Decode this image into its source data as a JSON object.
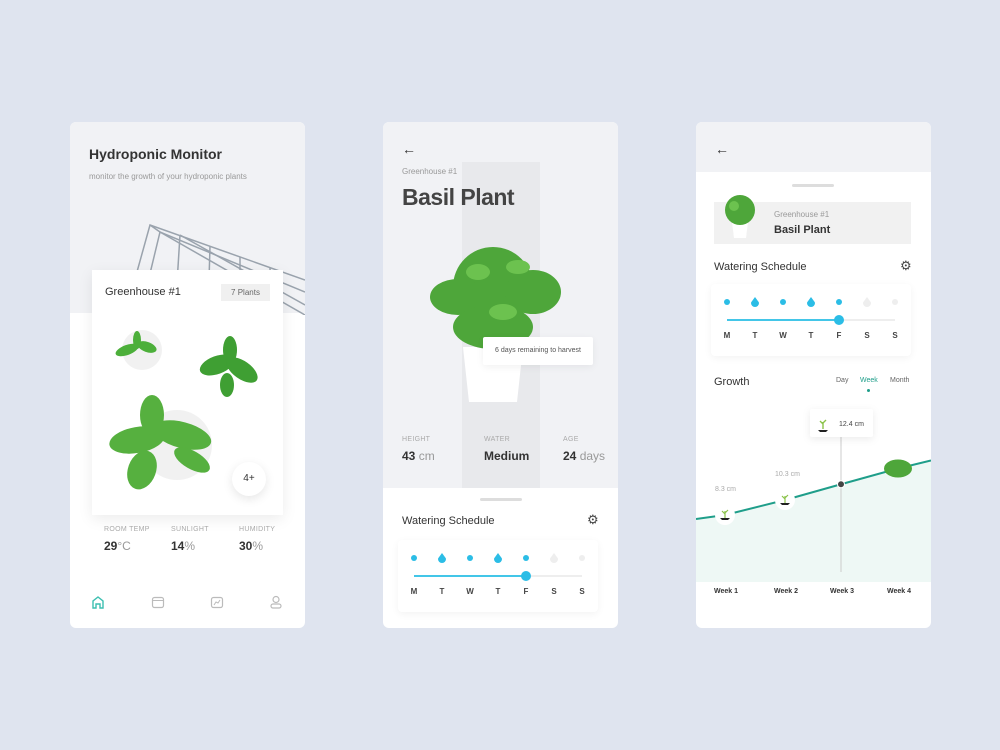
{
  "colors": {
    "accent": "#2bbde6",
    "green": "#1f9e8a",
    "background": "#dfe4ef"
  },
  "screen1": {
    "title": "Hydroponic Monitor",
    "subtitle": "monitor the growth of your hydroponic plants",
    "greenhouse": {
      "name": "Greenhouse #1",
      "plants_badge": "7 Plants",
      "more": "4+"
    },
    "stats": [
      {
        "label": "ROOM TEMP",
        "value": "29",
        "unit": "°C"
      },
      {
        "label": "SUNLIGHT",
        "value": "14",
        "unit": "%"
      },
      {
        "label": "HUMIDITY",
        "value": "30",
        "unit": "%"
      }
    ],
    "nav": [
      {
        "icon": "home-icon",
        "active": true
      },
      {
        "icon": "calendar-icon"
      },
      {
        "icon": "chart-icon"
      },
      {
        "icon": "user-icon"
      }
    ]
  },
  "screen2": {
    "back_icon": "arrow-left-icon",
    "subtitle": "Greenhouse #1",
    "title": "Basil Plant",
    "tooltip": "6 days remaining to harvest",
    "stats": [
      {
        "label": "HEIGHT",
        "value": "43",
        "unit": "cm"
      },
      {
        "label": "WATER",
        "value": "Medium",
        "unit": ""
      },
      {
        "label": "AGE",
        "value": "24",
        "unit": "days"
      }
    ],
    "schedule_title": "Watering Schedule"
  },
  "schedule": {
    "days": [
      {
        "letter": "M",
        "mark": "dot",
        "on": true
      },
      {
        "letter": "T",
        "mark": "drop",
        "on": true
      },
      {
        "letter": "W",
        "mark": "dot",
        "on": true
      },
      {
        "letter": "T",
        "mark": "drop",
        "on": true
      },
      {
        "letter": "F",
        "mark": "dot",
        "on": true
      },
      {
        "letter": "S",
        "mark": "drop",
        "on": false
      },
      {
        "letter": "S",
        "mark": "dot",
        "on": false
      }
    ],
    "progress_day_index": 4
  },
  "screen3": {
    "back_icon": "arrow-left-icon",
    "plant": {
      "subtitle": "Greenhouse #1",
      "title": "Basil Plant"
    },
    "schedule_title": "Watering Schedule",
    "growth_title": "Growth",
    "tabs": [
      {
        "label": "Day"
      },
      {
        "label": "Week",
        "active": true
      },
      {
        "label": "Month"
      }
    ],
    "chart_data": {
      "type": "line",
      "categories": [
        "Week 1",
        "Week 2",
        "Week 3",
        "Week 4"
      ],
      "values": [
        8.3,
        10.3,
        12.4,
        null
      ],
      "labels": [
        "8.3 cm",
        "10.3 cm",
        "12.4 cm",
        ""
      ],
      "highlight_index": 2
    }
  }
}
